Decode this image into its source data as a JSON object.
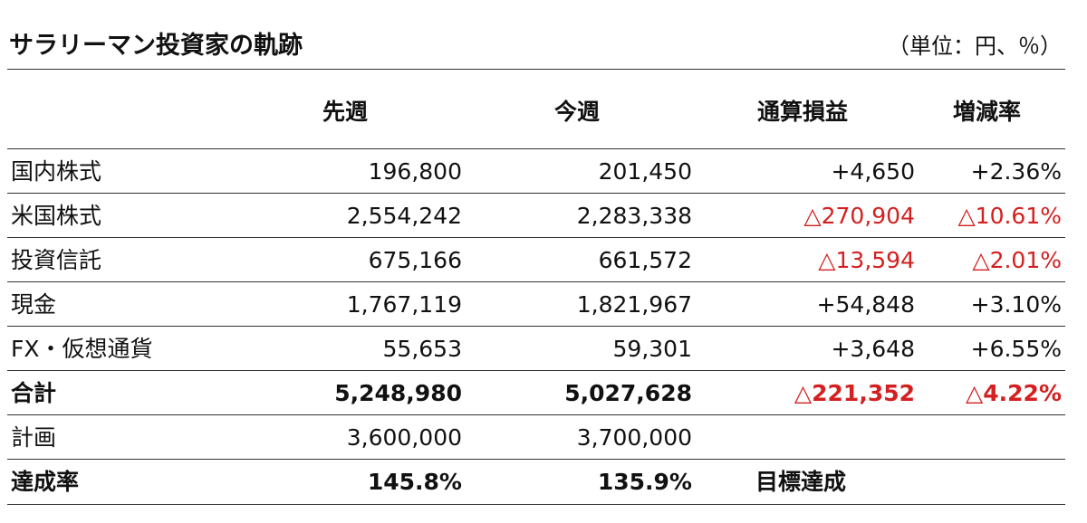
{
  "title": "サラリーマン投資家の軌跡",
  "unit_note": "（単位：円、％）",
  "headers": {
    "last_week": "先週",
    "this_week": "今週",
    "cumulative": "通算損益",
    "change_rate": "増減率"
  },
  "rows": [
    {
      "label": "国内株式",
      "last_week": "196,800",
      "this_week": "201,450",
      "cumulative": "+4,650",
      "change_rate": "+2.36%",
      "negative": false
    },
    {
      "label": "米国株式",
      "last_week": "2,554,242",
      "this_week": "2,283,338",
      "cumulative": "△270,904",
      "change_rate": "△10.61%",
      "negative": true
    },
    {
      "label": "投資信託",
      "last_week": "675,166",
      "this_week": "661,572",
      "cumulative": "△13,594",
      "change_rate": "△2.01%",
      "negative": true
    },
    {
      "label": "現金",
      "last_week": "1,767,119",
      "this_week": "1,821,967",
      "cumulative": "+54,848",
      "change_rate": "+3.10%",
      "negative": false
    },
    {
      "label": "FX・仮想通貨",
      "last_week": "55,653",
      "this_week": "59,301",
      "cumulative": "+3,648",
      "change_rate": "+6.55%",
      "negative": false
    }
  ],
  "total": {
    "label": "合計",
    "last_week": "5,248,980",
    "this_week": "5,027,628",
    "cumulative": "△221,352",
    "change_rate": "△4.22%",
    "negative": true
  },
  "plan": {
    "label": "計画",
    "last_week": "3,600,000",
    "this_week": "3,700,000"
  },
  "achievement": {
    "label": "達成率",
    "last_week": "145.8%",
    "this_week": "135.9%",
    "status": "目標達成"
  },
  "colors": {
    "negative": "#d42020",
    "text": "#111111",
    "rule": "#333333"
  }
}
